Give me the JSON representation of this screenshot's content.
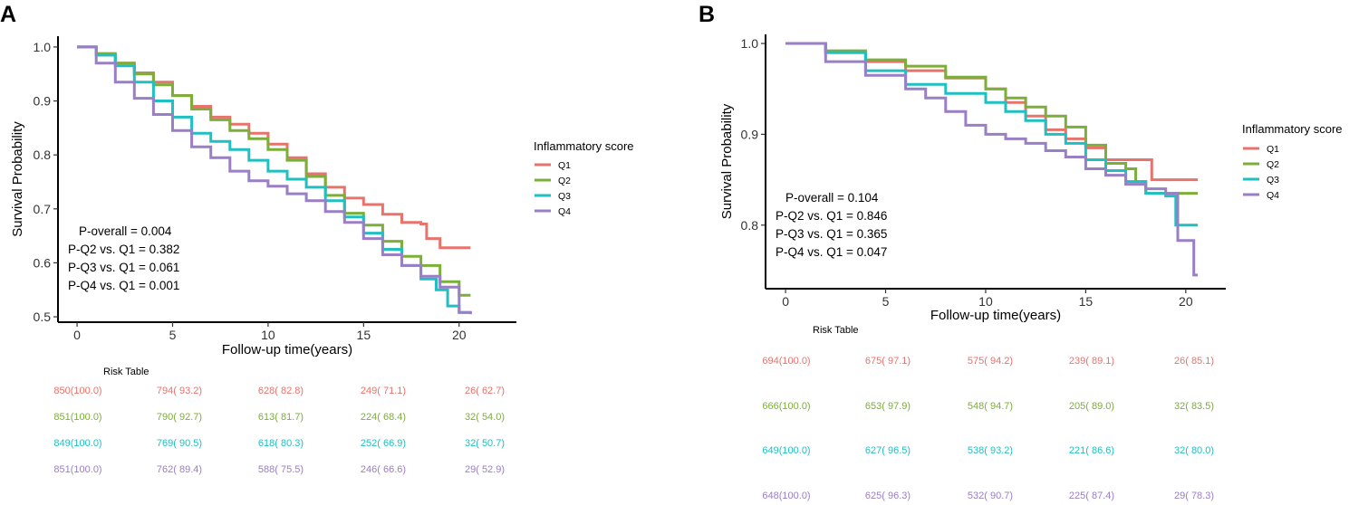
{
  "chart_data": [
    {
      "panel": "A",
      "type": "line",
      "xlabel": "Follow-up time(years)",
      "ylabel": "Survival Probability",
      "xlim": [
        -1,
        23
      ],
      "ylim": [
        0.49,
        1.02
      ],
      "xticks": [
        "0",
        "5",
        "10",
        "15",
        "20"
      ],
      "yticks": [
        "0.5",
        "0.6",
        "0.7",
        "0.8",
        "0.9",
        "1.0"
      ],
      "legend_title": "Inflammatory score",
      "annotations": [
        "P-overall = 0.004",
        "P-Q2 vs. Q1 = 0.382",
        "P-Q3 vs. Q1 = 0.061",
        "P-Q4 vs. Q1 = 0.001"
      ],
      "risk_table_title": "Risk Table",
      "series": [
        {
          "name": "Q1",
          "color": "#E8736C",
          "x": [
            0,
            1,
            2,
            3,
            4,
            5,
            6,
            7,
            8,
            9,
            10,
            11,
            12,
            13,
            14,
            15,
            16,
            17,
            18,
            18.3,
            19,
            20,
            20.6
          ],
          "y": [
            1.0,
            0.985,
            0.97,
            0.952,
            0.935,
            0.91,
            0.89,
            0.87,
            0.857,
            0.84,
            0.82,
            0.795,
            0.765,
            0.74,
            0.72,
            0.708,
            0.69,
            0.675,
            0.672,
            0.645,
            0.628,
            0.628,
            0.628
          ],
          "risk": [
            "850(100.0)",
            "794( 93.2)",
            "628( 82.8)",
            "249( 71.1)",
            "26( 62.7)"
          ]
        },
        {
          "name": "Q2",
          "color": "#7CAE3A",
          "x": [
            0,
            1,
            2,
            3,
            4,
            5,
            6,
            7,
            8,
            9,
            10,
            11,
            12,
            13,
            14,
            15,
            16,
            17,
            18,
            19,
            20,
            20.6
          ],
          "y": [
            1.0,
            0.988,
            0.97,
            0.95,
            0.93,
            0.91,
            0.885,
            0.865,
            0.845,
            0.83,
            0.81,
            0.79,
            0.76,
            0.725,
            0.692,
            0.67,
            0.64,
            0.612,
            0.595,
            0.565,
            0.54,
            0.54
          ],
          "risk": [
            "851(100.0)",
            "790( 92.7)",
            "613( 81.7)",
            "224( 68.4)",
            "32( 54.0)"
          ]
        },
        {
          "name": "Q3",
          "color": "#20BFC2",
          "x": [
            0,
            1,
            2,
            3,
            4,
            5,
            6,
            7,
            8,
            9,
            10,
            11,
            12,
            13,
            14,
            15,
            16,
            17,
            18,
            18.8,
            19.4,
            20,
            20.6
          ],
          "y": [
            1.0,
            0.985,
            0.965,
            0.935,
            0.9,
            0.87,
            0.84,
            0.825,
            0.81,
            0.79,
            0.77,
            0.755,
            0.74,
            0.715,
            0.685,
            0.655,
            0.625,
            0.595,
            0.57,
            0.55,
            0.52,
            0.508,
            0.508
          ],
          "risk": [
            "849(100.0)",
            "769( 90.5)",
            "618( 80.3)",
            "252( 66.9)",
            "32( 50.7)"
          ]
        },
        {
          "name": "Q4",
          "color": "#9A7EC6",
          "x": [
            0,
            1,
            2,
            3,
            4,
            5,
            6,
            7,
            8,
            9,
            10,
            11,
            12,
            13,
            14,
            15,
            16,
            17,
            18,
            19,
            20,
            20.6
          ],
          "y": [
            1.0,
            0.97,
            0.935,
            0.905,
            0.875,
            0.845,
            0.815,
            0.795,
            0.77,
            0.752,
            0.742,
            0.728,
            0.715,
            0.695,
            0.675,
            0.645,
            0.615,
            0.595,
            0.575,
            0.555,
            0.508,
            0.505
          ],
          "risk": [
            "851(100.0)",
            "762( 89.4)",
            "588( 75.5)",
            "246( 66.6)",
            "29( 52.9)"
          ]
        }
      ]
    },
    {
      "panel": "B",
      "type": "line",
      "xlabel": "Follow-up time(years)",
      "ylabel": "Survival Probability",
      "xlim": [
        -1,
        22
      ],
      "ylim": [
        0.73,
        1.01
      ],
      "xticks": [
        "0",
        "5",
        "10",
        "15",
        "20"
      ],
      "yticks": [
        "0.8",
        "0.9",
        "1.0"
      ],
      "legend_title": "Inflammatory score",
      "annotations": [
        "P-overall = 0.104",
        "P-Q2 vs. Q1 = 0.846",
        "P-Q3 vs. Q1 = 0.365",
        "P-Q4 vs. Q1 = 0.047"
      ],
      "risk_table_title": "Risk Table",
      "series": [
        {
          "name": "Q1",
          "color": "#E8736C",
          "x": [
            0,
            2,
            4,
            6,
            8,
            10,
            11,
            12,
            13,
            14,
            15,
            16,
            17,
            18,
            18.3,
            19,
            20.6
          ],
          "y": [
            1.0,
            0.99,
            0.98,
            0.97,
            0.962,
            0.95,
            0.935,
            0.92,
            0.905,
            0.895,
            0.885,
            0.872,
            0.872,
            0.872,
            0.85,
            0.85,
            0.85
          ],
          "risk": [
            "694(100.0)",
            "675( 97.1)",
            "575( 94.2)",
            "239( 89.1)",
            "26( 85.1)"
          ]
        },
        {
          "name": "Q2",
          "color": "#7CAE3A",
          "x": [
            0,
            2,
            4,
            6,
            8,
            10,
            11,
            12,
            13,
            14,
            15,
            16,
            17,
            17.5,
            18,
            19,
            20.6
          ],
          "y": [
            1.0,
            0.992,
            0.982,
            0.975,
            0.963,
            0.95,
            0.94,
            0.93,
            0.92,
            0.908,
            0.888,
            0.868,
            0.862,
            0.848,
            0.835,
            0.835,
            0.835
          ],
          "risk": [
            "666(100.0)",
            "653( 97.9)",
            "548( 94.7)",
            "205( 89.0)",
            "32( 83.5)"
          ]
        },
        {
          "name": "Q3",
          "color": "#20BFC2",
          "x": [
            0,
            2,
            4,
            6,
            8,
            10,
            11,
            12,
            13,
            14,
            15,
            16,
            17,
            18,
            19,
            19.5,
            20,
            20.6
          ],
          "y": [
            1.0,
            0.99,
            0.97,
            0.955,
            0.945,
            0.935,
            0.925,
            0.915,
            0.9,
            0.89,
            0.872,
            0.86,
            0.848,
            0.835,
            0.832,
            0.8,
            0.8,
            0.8
          ],
          "risk": [
            "649(100.0)",
            "627( 96.5)",
            "538( 93.2)",
            "221( 86.6)",
            "32( 80.0)"
          ]
        },
        {
          "name": "Q4",
          "color": "#9A7EC6",
          "x": [
            0,
            2,
            4,
            6,
            7,
            8,
            9,
            10,
            11,
            12,
            13,
            14,
            15,
            16,
            17,
            18,
            19,
            19.6,
            20.4,
            20.6
          ],
          "y": [
            1.0,
            0.98,
            0.965,
            0.95,
            0.94,
            0.925,
            0.91,
            0.9,
            0.895,
            0.89,
            0.882,
            0.875,
            0.862,
            0.855,
            0.845,
            0.84,
            0.835,
            0.783,
            0.745,
            0.745
          ],
          "risk": [
            "648(100.0)",
            "625( 96.3)",
            "532( 90.7)",
            "225( 87.4)",
            "29( 78.3)"
          ]
        }
      ]
    }
  ]
}
